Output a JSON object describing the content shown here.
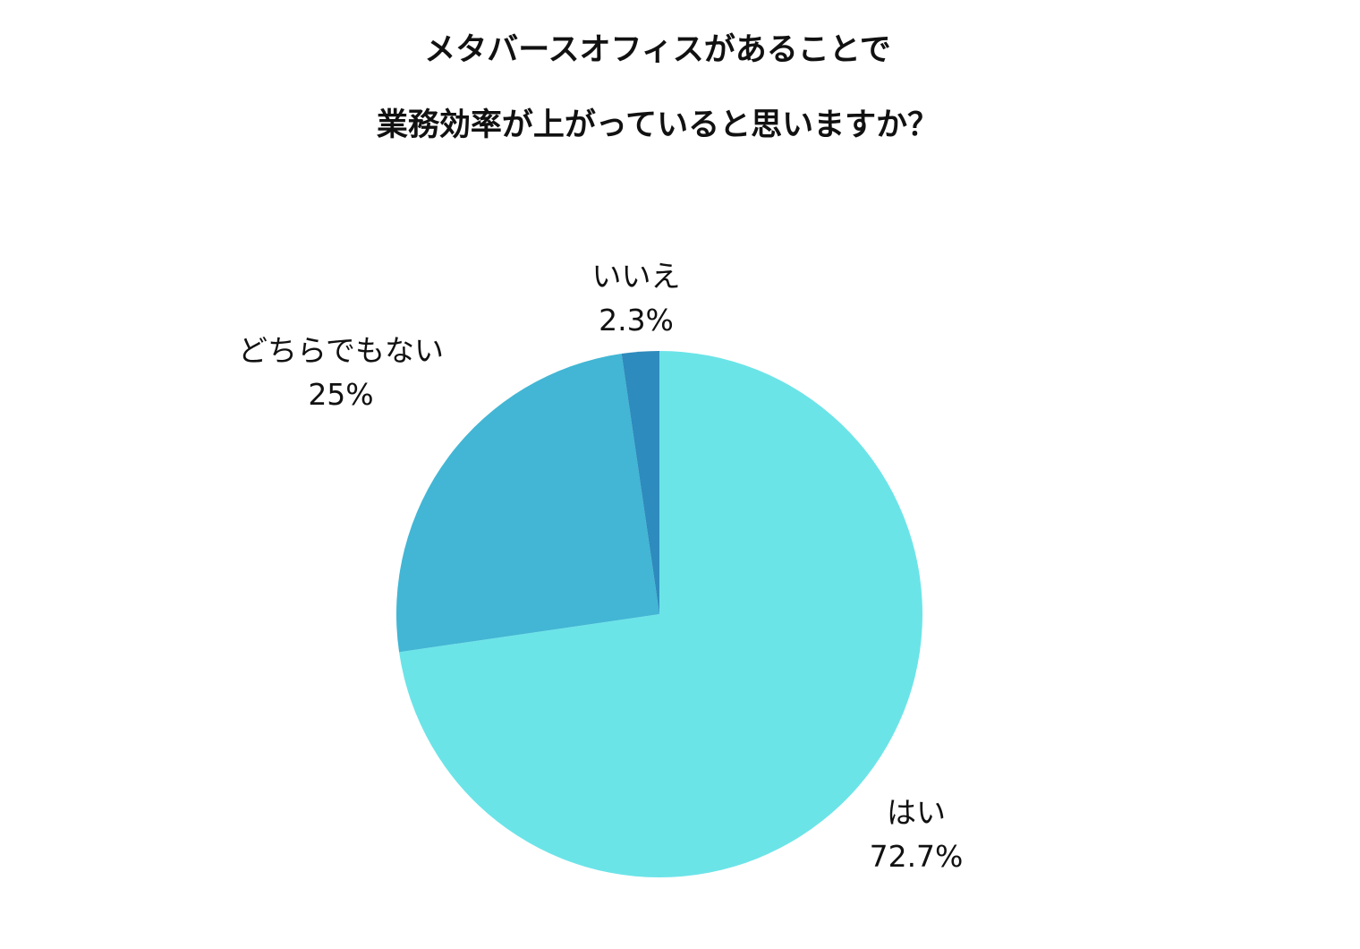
{
  "chart_data": {
    "type": "pie",
    "title": [
      "メタバースオフィスがあることで",
      "業務効率が上がっていると思いますか？"
    ],
    "categories": [
      "はい",
      "どちらでもない",
      "いいえ"
    ],
    "values": [
      72.7,
      25,
      2.3
    ],
    "value_labels": [
      "72.7%",
      "25%",
      "2.3%"
    ],
    "colors": [
      "#6be4e8",
      "#42b6d4",
      "#2e8bbd"
    ],
    "start_angle": "12 o'clock",
    "direction": "clockwise",
    "legend": "none (labels outside slices)"
  }
}
